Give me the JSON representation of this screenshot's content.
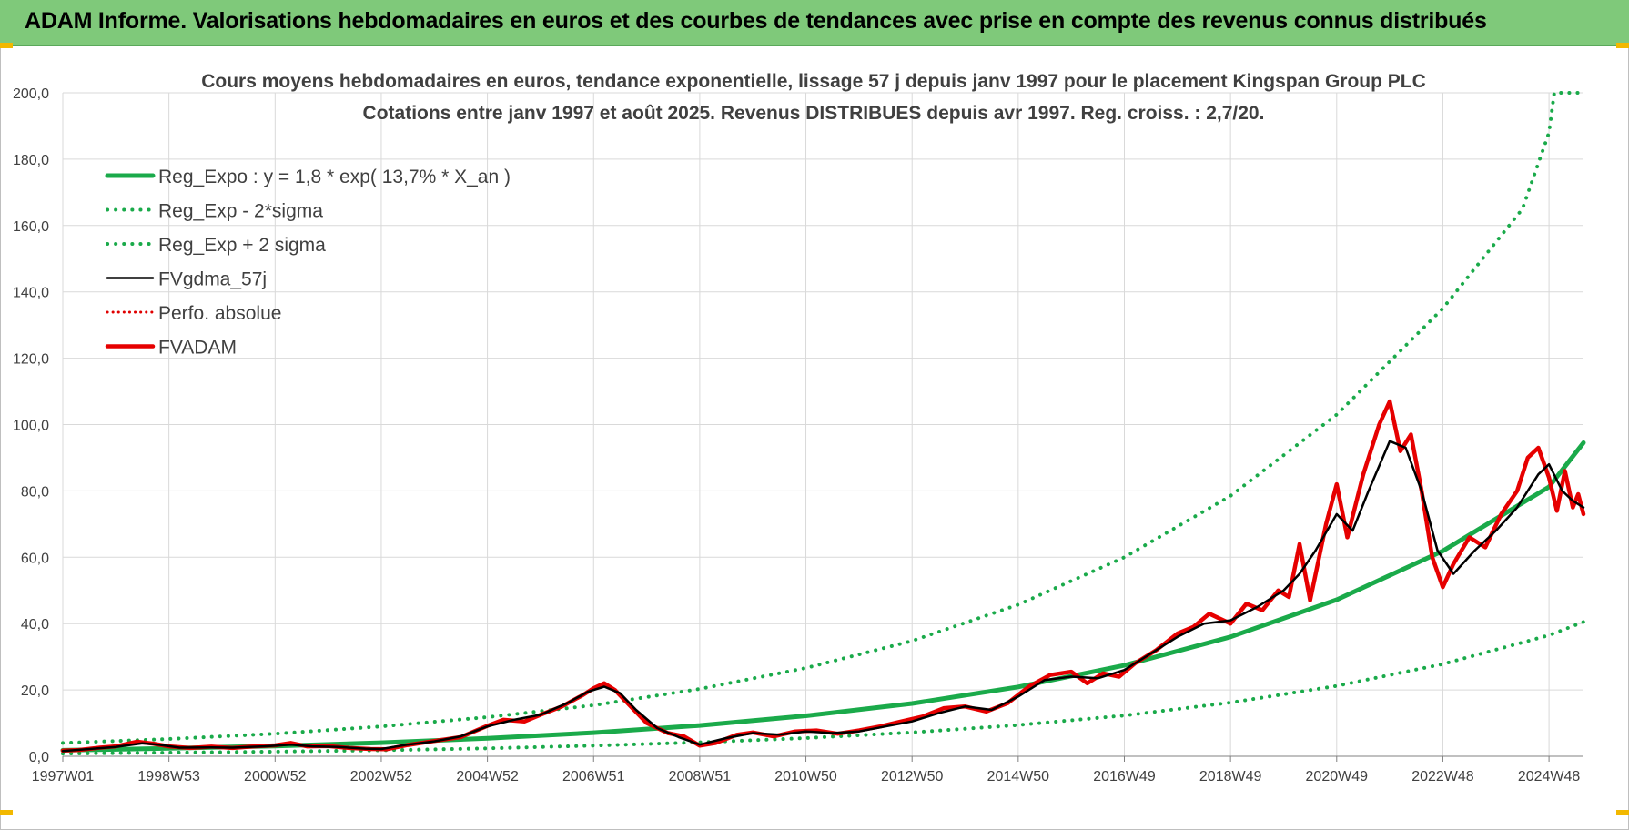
{
  "header": {
    "title": "ADAM Informe. Valorisations hebdomadaires en euros et des courbes de tendances avec prise en compte des revenus connus distribués"
  },
  "chart_data": {
    "type": "line",
    "title": "Cours moyens hebdomadaires en euros, tendance exponentielle, lissage 57 j depuis janv 1997 pour le placement Kingspan Group PLC",
    "subtitle": "Cotations entre janv 1997 et août 2025. Revenus DISTRIBUES depuis avr 1997. Reg. croiss. : 2,7/20.",
    "xlabel": "",
    "ylabel": "",
    "x_tick_labels": [
      "1997W01",
      "1998W53",
      "2000W52",
      "2002W52",
      "2004W52",
      "2006W51",
      "2008W51",
      "2010W50",
      "2012W50",
      "2014W50",
      "2016W49",
      "2018W49",
      "2020W49",
      "2022W48",
      "2024W48"
    ],
    "x_tick_years": [
      1997.0,
      1999.0,
      2001.0,
      2003.0,
      2005.0,
      2007.0,
      2009.0,
      2011.0,
      2013.0,
      2015.0,
      2017.0,
      2019.0,
      2021.0,
      2023.0,
      2025.0
    ],
    "x_range": [
      1997.0,
      2025.65
    ],
    "y_tick_labels": [
      "0,0",
      "20,0",
      "40,0",
      "60,0",
      "80,0",
      "100,0",
      "120,0",
      "140,0",
      "160,0",
      "180,0",
      "200,0"
    ],
    "ylim": [
      0,
      200
    ],
    "grid": true,
    "legend_position": "top-left",
    "series": [
      {
        "name": "Reg_Expo : y = 1,8 * exp( 13,7% *  X_an )",
        "color": "#1aaa4a",
        "style": "solid",
        "points": [
          [
            1997.0,
            1.8
          ],
          [
            1999.0,
            2.4
          ],
          [
            2001.0,
            3.1
          ],
          [
            2003.0,
            4.1
          ],
          [
            2005.0,
            5.4
          ],
          [
            2007.0,
            7.1
          ],
          [
            2009.0,
            9.3
          ],
          [
            2011.0,
            12.2
          ],
          [
            2013.0,
            15.9
          ],
          [
            2015.0,
            20.9
          ],
          [
            2017.0,
            27.4
          ],
          [
            2019.0,
            36.0
          ],
          [
            2021.0,
            47.2
          ],
          [
            2023.0,
            61.9
          ],
          [
            2025.0,
            81.2
          ],
          [
            2025.65,
            94.5
          ]
        ]
      },
      {
        "name": "Reg_Exp - 2*sigma",
        "color": "#1aaa4a",
        "style": "dotted",
        "points": [
          [
            1997.0,
            0.8
          ],
          [
            1999.0,
            1.1
          ],
          [
            2001.0,
            1.4
          ],
          [
            2003.0,
            1.8
          ],
          [
            2005.0,
            2.4
          ],
          [
            2007.0,
            3.2
          ],
          [
            2009.0,
            4.2
          ],
          [
            2011.0,
            5.5
          ],
          [
            2013.0,
            7.2
          ],
          [
            2015.0,
            9.4
          ],
          [
            2017.0,
            12.3
          ],
          [
            2019.0,
            16.2
          ],
          [
            2021.0,
            21.2
          ],
          [
            2023.0,
            27.8
          ],
          [
            2025.0,
            36.5
          ],
          [
            2025.65,
            40.5
          ]
        ]
      },
      {
        "name": "Reg_Exp + 2 sigma",
        "color": "#1aaa4a",
        "style": "dotted",
        "points": [
          [
            1997.0,
            4.0
          ],
          [
            1999.0,
            5.2
          ],
          [
            2001.0,
            6.8
          ],
          [
            2003.0,
            9.0
          ],
          [
            2005.0,
            11.8
          ],
          [
            2007.0,
            15.4
          ],
          [
            2009.0,
            20.3
          ],
          [
            2011.0,
            26.6
          ],
          [
            2013.0,
            34.8
          ],
          [
            2015.0,
            45.7
          ],
          [
            2017.0,
            60.0
          ],
          [
            2019.0,
            78.5
          ],
          [
            2021.0,
            103.0
          ],
          [
            2023.0,
            135.0
          ],
          [
            2024.5,
            165.0
          ],
          [
            2025.0,
            188.0
          ],
          [
            2025.1,
            200.0
          ],
          [
            2025.65,
            200.0
          ]
        ]
      },
      {
        "name": "FVgdma_57j",
        "color": "#000000",
        "style": "solid",
        "points": [
          [
            1997.0,
            1.6
          ],
          [
            1997.5,
            2.2
          ],
          [
            1998.0,
            2.8
          ],
          [
            1998.5,
            3.9
          ],
          [
            1998.8,
            3.5
          ],
          [
            1999.2,
            2.6
          ],
          [
            1999.8,
            2.7
          ],
          [
            2000.2,
            2.6
          ],
          [
            2000.8,
            3.0
          ],
          [
            2001.3,
            3.5
          ],
          [
            2001.7,
            3.0
          ],
          [
            2002.2,
            2.8
          ],
          [
            2002.7,
            2.3
          ],
          [
            2003.0,
            2.2
          ],
          [
            2003.5,
            3.5
          ],
          [
            2004.0,
            4.5
          ],
          [
            2004.5,
            6.0
          ],
          [
            2005.0,
            9.0
          ],
          [
            2005.5,
            11.0
          ],
          [
            2006.0,
            12.5
          ],
          [
            2006.5,
            16.0
          ],
          [
            2006.9,
            19.5
          ],
          [
            2007.2,
            21.0
          ],
          [
            2007.5,
            19.0
          ],
          [
            2007.8,
            14.0
          ],
          [
            2008.2,
            8.5
          ],
          [
            2008.6,
            5.8
          ],
          [
            2009.0,
            3.5
          ],
          [
            2009.5,
            5.5
          ],
          [
            2010.0,
            7.0
          ],
          [
            2010.5,
            6.5
          ],
          [
            2011.0,
            7.5
          ],
          [
            2011.5,
            7.0
          ],
          [
            2012.0,
            7.5
          ],
          [
            2012.5,
            9.0
          ],
          [
            2013.0,
            10.5
          ],
          [
            2013.5,
            13.0
          ],
          [
            2014.0,
            15.0
          ],
          [
            2014.5,
            14.0
          ],
          [
            2015.0,
            18.0
          ],
          [
            2015.5,
            23.0
          ],
          [
            2016.0,
            24.0
          ],
          [
            2016.5,
            23.5
          ],
          [
            2017.0,
            26.0
          ],
          [
            2017.5,
            31.0
          ],
          [
            2018.0,
            36.0
          ],
          [
            2018.5,
            40.0
          ],
          [
            2019.0,
            41.0
          ],
          [
            2019.5,
            45.0
          ],
          [
            2020.0,
            50.0
          ],
          [
            2020.3,
            55.0
          ],
          [
            2020.6,
            62.0
          ],
          [
            2021.0,
            73.0
          ],
          [
            2021.3,
            68.0
          ],
          [
            2021.6,
            80.0
          ],
          [
            2022.0,
            95.0
          ],
          [
            2022.3,
            93.0
          ],
          [
            2022.6,
            80.0
          ],
          [
            2022.9,
            62.0
          ],
          [
            2023.2,
            55.0
          ],
          [
            2023.6,
            62.0
          ],
          [
            2024.0,
            68.0
          ],
          [
            2024.4,
            75.0
          ],
          [
            2024.8,
            85.0
          ],
          [
            2025.0,
            88.0
          ],
          [
            2025.25,
            80.0
          ],
          [
            2025.45,
            77.0
          ],
          [
            2025.65,
            75.0
          ]
        ]
      },
      {
        "name": "Perfo. absolue",
        "color": "#e00000",
        "style": "dotted",
        "points": []
      },
      {
        "name": "FVADAM",
        "color": "#e60000",
        "style": "solid",
        "points": [
          [
            1997.0,
            1.7
          ],
          [
            1997.3,
            1.9
          ],
          [
            1997.7,
            2.6
          ],
          [
            1998.0,
            3.0
          ],
          [
            1998.4,
            4.4
          ],
          [
            1998.7,
            3.8
          ],
          [
            1999.0,
            3.0
          ],
          [
            1999.4,
            2.5
          ],
          [
            1999.8,
            2.9
          ],
          [
            2000.2,
            2.5
          ],
          [
            2000.6,
            3.0
          ],
          [
            2001.0,
            3.3
          ],
          [
            2001.3,
            4.0
          ],
          [
            2001.6,
            3.0
          ],
          [
            2002.0,
            3.1
          ],
          [
            2002.4,
            2.5
          ],
          [
            2002.8,
            2.2
          ],
          [
            2003.1,
            2.1
          ],
          [
            2003.5,
            3.4
          ],
          [
            2004.0,
            4.6
          ],
          [
            2004.5,
            5.8
          ],
          [
            2005.0,
            9.2
          ],
          [
            2005.3,
            11.0
          ],
          [
            2005.7,
            10.5
          ],
          [
            2006.0,
            12.5
          ],
          [
            2006.4,
            15.0
          ],
          [
            2006.8,
            18.5
          ],
          [
            2007.0,
            20.5
          ],
          [
            2007.2,
            22.0
          ],
          [
            2007.4,
            20.0
          ],
          [
            2007.7,
            15.0
          ],
          [
            2008.0,
            10.0
          ],
          [
            2008.4,
            7.0
          ],
          [
            2008.7,
            6.0
          ],
          [
            2009.0,
            3.2
          ],
          [
            2009.3,
            4.0
          ],
          [
            2009.7,
            6.5
          ],
          [
            2010.0,
            7.2
          ],
          [
            2010.4,
            6.0
          ],
          [
            2010.8,
            7.5
          ],
          [
            2011.2,
            7.8
          ],
          [
            2011.6,
            6.8
          ],
          [
            2012.0,
            7.8
          ],
          [
            2012.4,
            9.0
          ],
          [
            2012.8,
            10.5
          ],
          [
            2013.2,
            12.0
          ],
          [
            2013.6,
            14.5
          ],
          [
            2014.0,
            15.0
          ],
          [
            2014.4,
            13.5
          ],
          [
            2014.8,
            16.0
          ],
          [
            2015.2,
            21.0
          ],
          [
            2015.6,
            24.5
          ],
          [
            2016.0,
            25.5
          ],
          [
            2016.3,
            22.0
          ],
          [
            2016.6,
            25.0
          ],
          [
            2016.9,
            24.0
          ],
          [
            2017.2,
            28.0
          ],
          [
            2017.6,
            32.0
          ],
          [
            2018.0,
            37.0
          ],
          [
            2018.3,
            39.0
          ],
          [
            2018.6,
            43.0
          ],
          [
            2019.0,
            40.0
          ],
          [
            2019.3,
            46.0
          ],
          [
            2019.6,
            44.0
          ],
          [
            2019.9,
            50.0
          ],
          [
            2020.1,
            48.0
          ],
          [
            2020.3,
            64.0
          ],
          [
            2020.5,
            47.0
          ],
          [
            2020.8,
            70.0
          ],
          [
            2021.0,
            82.0
          ],
          [
            2021.2,
            66.0
          ],
          [
            2021.5,
            85.0
          ],
          [
            2021.8,
            100.0
          ],
          [
            2022.0,
            107.0
          ],
          [
            2022.2,
            92.0
          ],
          [
            2022.4,
            97.0
          ],
          [
            2022.6,
            80.0
          ],
          [
            2022.8,
            60.0
          ],
          [
            2023.0,
            51.0
          ],
          [
            2023.2,
            58.0
          ],
          [
            2023.5,
            66.0
          ],
          [
            2023.8,
            63.0
          ],
          [
            2024.1,
            73.0
          ],
          [
            2024.4,
            80.0
          ],
          [
            2024.6,
            90.0
          ],
          [
            2024.8,
            93.0
          ],
          [
            2025.0,
            84.0
          ],
          [
            2025.15,
            74.0
          ],
          [
            2025.3,
            86.0
          ],
          [
            2025.45,
            75.0
          ],
          [
            2025.55,
            79.0
          ],
          [
            2025.65,
            73.0
          ]
        ]
      }
    ]
  }
}
